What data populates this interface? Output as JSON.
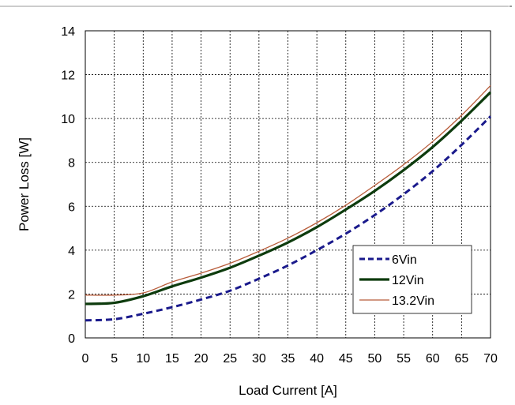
{
  "chart_data": {
    "type": "line",
    "title": "",
    "xlabel": "Load Current [A]",
    "ylabel": "Power Loss [W]",
    "xlim": [
      0,
      70
    ],
    "ylim": [
      0,
      14
    ],
    "xticks": [
      "0",
      "5",
      "10",
      "15",
      "20",
      "25",
      "30",
      "35",
      "40",
      "45",
      "50",
      "55",
      "60",
      "65",
      "70"
    ],
    "yticks": [
      "0",
      "2",
      "4",
      "6",
      "8",
      "10",
      "12",
      "14"
    ],
    "grid": true,
    "legend_position": "lower-right",
    "series": [
      {
        "name": "6Vin",
        "color": "#1a1a8c",
        "style": "dashed",
        "x": [
          0,
          5,
          10,
          15,
          20,
          25,
          30,
          35,
          40,
          45,
          50,
          55,
          60,
          65,
          70
        ],
        "y": [
          0.8,
          0.85,
          1.1,
          1.4,
          1.75,
          2.15,
          2.7,
          3.3,
          4.0,
          4.75,
          5.6,
          6.55,
          7.6,
          8.8,
          10.1
        ]
      },
      {
        "name": "12Vin",
        "color": "#0d3b0d",
        "style": "solid-thick",
        "x": [
          0,
          5,
          10,
          15,
          20,
          25,
          30,
          35,
          40,
          45,
          50,
          55,
          60,
          65,
          70
        ],
        "y": [
          1.55,
          1.6,
          1.9,
          2.35,
          2.75,
          3.2,
          3.75,
          4.35,
          5.05,
          5.85,
          6.7,
          7.65,
          8.7,
          9.9,
          11.2
        ]
      },
      {
        "name": "13.2Vin",
        "color": "#b85c3a",
        "style": "solid-thin",
        "x": [
          0,
          5,
          10,
          15,
          20,
          25,
          30,
          35,
          40,
          45,
          50,
          55,
          60,
          65,
          70
        ],
        "y": [
          1.95,
          1.95,
          2.05,
          2.55,
          2.95,
          3.4,
          3.95,
          4.55,
          5.25,
          6.05,
          6.95,
          7.9,
          8.95,
          10.15,
          11.5
        ]
      }
    ]
  }
}
